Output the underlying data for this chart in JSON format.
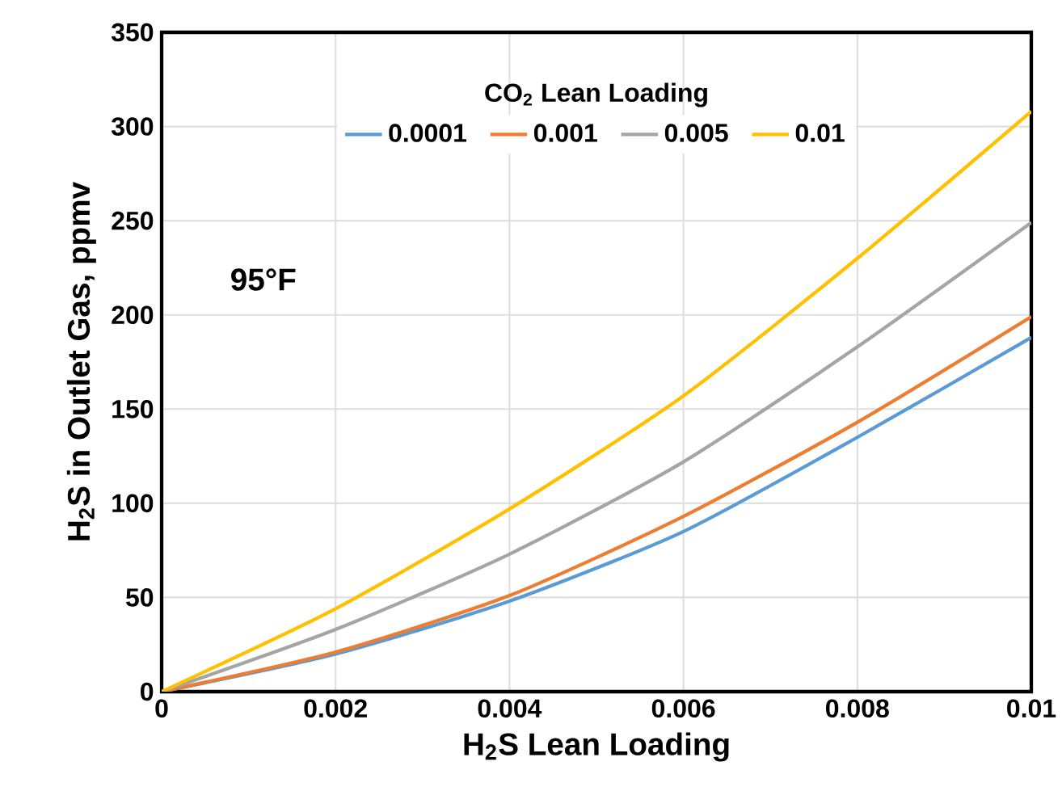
{
  "chart_data": {
    "type": "line",
    "xlabel": "H$_{2}$S Lean Loading",
    "ylabel": "H$_{2}$S in Outlet Gas, ppmv",
    "legend_title": "CO$_{2}$ Lean Loading",
    "legend": "top",
    "grid": true,
    "marker": "none",
    "line_style": "solid",
    "annotations": [
      "95°F"
    ],
    "x": [
      0,
      0.002,
      0.004,
      0.006,
      0.008,
      0.01
    ],
    "xlim": [
      0,
      0.01
    ],
    "xticks": [
      0,
      0.002,
      0.004,
      0.006,
      0.008,
      0.01
    ],
    "ylim": [
      0,
      350
    ],
    "yticks": [
      0,
      50,
      100,
      150,
      200,
      250,
      300,
      350
    ],
    "series": [
      {
        "name": "0.0001",
        "color": "#5b9bd5",
        "values": [
          0,
          20,
          48,
          85,
          135,
          188
        ]
      },
      {
        "name": "0.001",
        "color": "#ed7d31",
        "values": [
          0,
          21,
          51,
          93,
          143,
          199
        ]
      },
      {
        "name": "0.005",
        "color": "#a5a5a5",
        "values": [
          0,
          33,
          73,
          122,
          183,
          249
        ]
      },
      {
        "name": "0.01",
        "color": "#ffc000",
        "values": [
          0,
          44,
          97,
          157,
          230,
          308
        ]
      }
    ]
  }
}
